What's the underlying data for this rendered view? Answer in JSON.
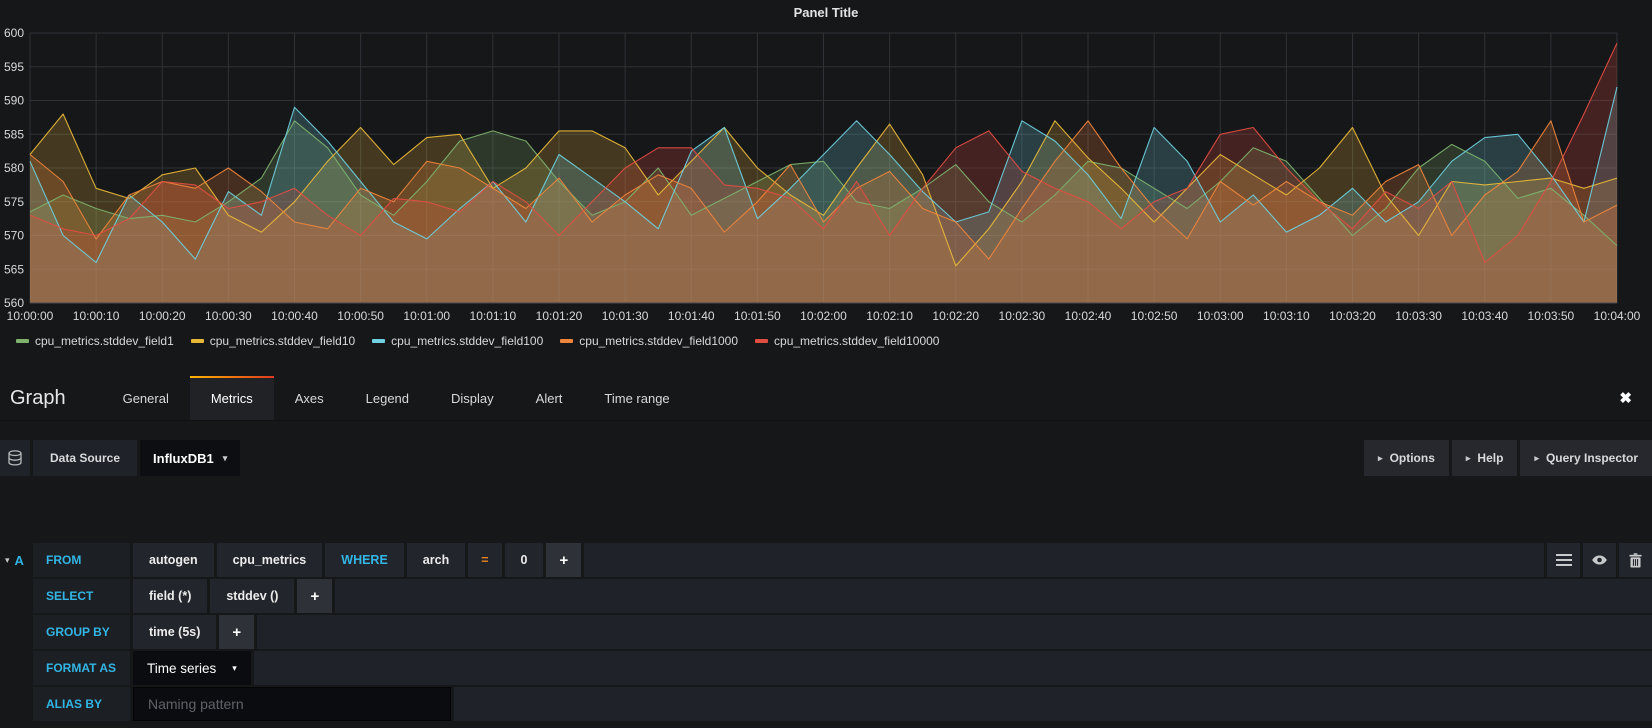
{
  "chart_data": {
    "type": "line",
    "title": "Panel Title",
    "xlabel": "",
    "ylabel": "",
    "ylim": [
      560,
      600
    ],
    "y_ticks": [
      560,
      565,
      570,
      575,
      580,
      585,
      590,
      595,
      600
    ],
    "x_start": "10:00:00",
    "x_end": "10:04:00",
    "x_interval_seconds": 5,
    "x_tick_labels": [
      "10:00:00",
      "10:00:10",
      "10:00:20",
      "10:00:30",
      "10:00:40",
      "10:00:50",
      "10:01:00",
      "10:01:10",
      "10:01:20",
      "10:01:30",
      "10:01:40",
      "10:01:50",
      "10:02:00",
      "10:02:10",
      "10:02:20",
      "10:02:30",
      "10:02:40",
      "10:02:50",
      "10:03:00",
      "10:03:10",
      "10:03:20",
      "10:03:30",
      "10:03:40",
      "10:03:50",
      "10:04:00"
    ],
    "grid": true,
    "legend_position": "bottom",
    "fill_opacity": 0.22,
    "series": [
      {
        "name": "cpu_metrics.stddev_field1",
        "color": "#7EB26D",
        "values": [
          573.5,
          576,
          574,
          572.5,
          573,
          572,
          575,
          578.5,
          587,
          583,
          576,
          573,
          578,
          584,
          585.5,
          584,
          578,
          573,
          575,
          580,
          573,
          575.5,
          578,
          580.5,
          581,
          575,
          574,
          577,
          580.5,
          575,
          572,
          576,
          581,
          580,
          577,
          574,
          578,
          583,
          581,
          575.5,
          570,
          574,
          580,
          583.5,
          581,
          575.5,
          577,
          573,
          568.5
        ]
      },
      {
        "name": "cpu_metrics.stddev_field10",
        "color": "#EAB839",
        "values": [
          582,
          588,
          577,
          575.5,
          579,
          580,
          573,
          570.5,
          575,
          581,
          586,
          580.5,
          584.5,
          585,
          577,
          580,
          585.5,
          585.5,
          583,
          576,
          581,
          586,
          580,
          576,
          573,
          580,
          586.5,
          579,
          565.5,
          571,
          578,
          587,
          581.5,
          577,
          572,
          577,
          582,
          579,
          576,
          580,
          586,
          576,
          570,
          578,
          577.5,
          578,
          578.5,
          577,
          578.5
        ]
      },
      {
        "name": "cpu_metrics.stddev_field100",
        "color": "#6ED0E0",
        "values": [
          581,
          570,
          566,
          576,
          572,
          566.5,
          576.5,
          573,
          589,
          584,
          578,
          572,
          569.5,
          574,
          578,
          572,
          582,
          578.5,
          575,
          571,
          582.5,
          586,
          572.5,
          577,
          582,
          587,
          582,
          576.5,
          572,
          573.5,
          587,
          584,
          579,
          572.5,
          586,
          581,
          572,
          576,
          570.5,
          573,
          577,
          572,
          575,
          581,
          584.5,
          585,
          579,
          572,
          592
        ]
      },
      {
        "name": "cpu_metrics.stddev_field1000",
        "color": "#EF843C",
        "values": [
          582,
          578,
          569.5,
          576,
          578,
          577,
          580,
          576.5,
          572,
          571,
          577,
          575,
          581,
          580,
          577,
          574,
          578.5,
          572,
          576,
          579,
          577,
          570.5,
          575,
          580.5,
          572,
          577,
          579.5,
          574,
          572,
          566.5,
          574,
          581,
          587,
          580,
          574,
          569.5,
          578,
          574.5,
          578,
          575,
          573,
          578,
          580.5,
          570,
          576,
          579.5,
          587,
          572,
          574.5
        ]
      },
      {
        "name": "cpu_metrics.stddev_field10000",
        "color": "#E24D42",
        "values": [
          573,
          571,
          570,
          572.5,
          578,
          577.5,
          574,
          575,
          577,
          573,
          570,
          575.5,
          575,
          573.5,
          578,
          575,
          570,
          575,
          580,
          583,
          583,
          577.5,
          577,
          575.5,
          571,
          578,
          570,
          577,
          583,
          585.5,
          579.5,
          577,
          575,
          571,
          575,
          577,
          585,
          586,
          580,
          575,
          571,
          576.5,
          574,
          578,
          566,
          570,
          578,
          588,
          598.5
        ]
      }
    ]
  },
  "editor": {
    "panel_type_label": "Graph",
    "tabs": [
      "General",
      "Metrics",
      "Axes",
      "Legend",
      "Display",
      "Alert",
      "Time range"
    ],
    "active_tab": "Metrics",
    "toolbar": {
      "datasource_label": "Data Source",
      "datasource_value": "InfluxDB1",
      "options_label": "Options",
      "help_label": "Help",
      "query_inspector_label": "Query Inspector"
    },
    "query": {
      "ref_id": "A",
      "from": {
        "label": "FROM",
        "policy": "autogen",
        "measurement": "cpu_metrics",
        "where_label": "WHERE",
        "field": "arch",
        "operator": "=",
        "value": "0"
      },
      "select": {
        "label": "SELECT",
        "field": "field (*)",
        "aggregate": "stddev ()"
      },
      "group_by": {
        "label": "GROUP BY",
        "interval": "time (5s)"
      },
      "format_as": {
        "label": "FORMAT AS",
        "value": "Time series"
      },
      "alias_by": {
        "label": "ALIAS BY",
        "placeholder": "Naming pattern"
      }
    }
  },
  "icons": {
    "plus": "+",
    "caret_down": "▾",
    "caret_right": "▸",
    "close": "✖"
  },
  "colors": {
    "keyword_blue": "#33b5e5",
    "operator_orange": "#eb841f",
    "active_tab_gradient": [
      "#ffb400",
      "#e03a1e"
    ],
    "background": "#161719"
  }
}
